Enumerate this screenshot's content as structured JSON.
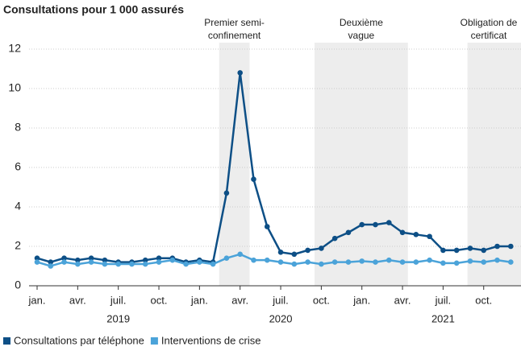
{
  "chart_data": {
    "type": "line",
    "title": "Consultations pour 1 000 assurés",
    "categories": [
      "jan.",
      null,
      null,
      "avr.",
      null,
      null,
      "juil.",
      null,
      null,
      "oct.",
      null,
      null,
      "jan.",
      null,
      null,
      "avr.",
      null,
      null,
      "juil.",
      null,
      null,
      "oct.",
      null,
      null,
      "jan.",
      null,
      null,
      "avr.",
      null,
      null,
      "juil.",
      null,
      null,
      "oct.",
      null,
      null
    ],
    "years": [
      "2019",
      "2020",
      "2021"
    ],
    "series": [
      {
        "name": "Consultations par téléphone",
        "color": "#0d4f86",
        "values": [
          1.4,
          1.2,
          1.4,
          1.3,
          1.4,
          1.3,
          1.2,
          1.2,
          1.3,
          1.4,
          1.4,
          1.2,
          1.3,
          1.2,
          4.7,
          10.8,
          5.4,
          3.0,
          1.7,
          1.6,
          1.8,
          1.9,
          2.4,
          2.7,
          3.1,
          3.1,
          3.2,
          2.7,
          2.6,
          2.5,
          1.8,
          1.8,
          1.9,
          1.8,
          2.0,
          2.0
        ]
      },
      {
        "name": "Interventions de crise",
        "color": "#4ba3d9",
        "values": [
          1.2,
          1.0,
          1.2,
          1.1,
          1.2,
          1.1,
          1.1,
          1.1,
          1.1,
          1.2,
          1.3,
          1.1,
          1.2,
          1.1,
          1.4,
          1.6,
          1.3,
          1.3,
          1.2,
          1.1,
          1.2,
          1.1,
          1.2,
          1.2,
          1.25,
          1.2,
          1.3,
          1.2,
          1.2,
          1.3,
          1.15,
          1.15,
          1.25,
          1.2,
          1.3,
          1.2
        ]
      }
    ],
    "annotations": [
      [
        "Premier semi-",
        "confinement"
      ],
      [
        "Deuxième",
        "vague"
      ],
      [
        "Obligation de",
        "certificat"
      ]
    ],
    "ylim": [
      0,
      12
    ],
    "yticks": [
      0,
      2,
      4,
      6,
      8,
      10,
      12
    ],
    "grid": true
  }
}
